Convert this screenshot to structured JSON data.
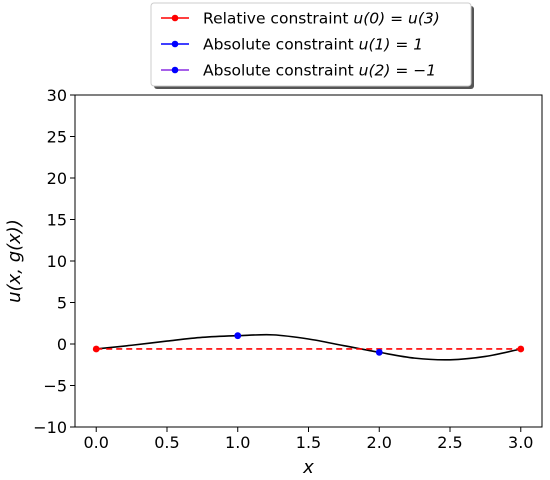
{
  "chart_data": {
    "type": "line",
    "title": "",
    "xlabel": "x",
    "ylabel": "u(x, g(x))",
    "xlim": [
      -0.15,
      3.15
    ],
    "ylim": [
      -10,
      30
    ],
    "xticks": [
      0.0,
      0.5,
      1.0,
      1.5,
      2.0,
      2.5,
      3.0
    ],
    "xtick_labels": [
      "0.0",
      "0.5",
      "1.0",
      "1.5",
      "2.0",
      "2.5",
      "3.0"
    ],
    "yticks": [
      -10,
      -5,
      0,
      5,
      10,
      15,
      20,
      25,
      30
    ],
    "ytick_labels": [
      "−10",
      "−5",
      "0",
      "5",
      "10",
      "15",
      "20",
      "25",
      "30"
    ],
    "grid": false,
    "legend_placement": "top-center, above plot",
    "curve": {
      "color": "#000000",
      "x": [
        0.0,
        0.25,
        0.5,
        0.75,
        1.0,
        1.25,
        1.5,
        1.75,
        2.0,
        2.25,
        2.5,
        2.75,
        3.0
      ],
      "y": [
        -0.6,
        -0.15,
        0.35,
        0.8,
        1.0,
        1.1,
        0.6,
        -0.2,
        -1.0,
        -1.7,
        -1.9,
        -1.5,
        -0.6
      ]
    },
    "series": [
      {
        "name": "Relative constraint u(0) = u(3)",
        "color": "#ff0000",
        "style": "dashed",
        "x": [
          0.0,
          3.0
        ],
        "y": [
          -0.6,
          -0.6
        ]
      },
      {
        "name": "Absolute constraint u(1) = 1",
        "color": "#0000ff",
        "style": "point",
        "x": [
          1.0
        ],
        "y": [
          1.0
        ]
      },
      {
        "name": "Absolute constraint u(2) = −1",
        "color": "#0000ff",
        "style": "point",
        "x": [
          2.0
        ],
        "y": [
          -1.0
        ]
      }
    ],
    "legend": [
      {
        "prefix": "Relative constraint ",
        "expr": "u(0) = u(3)",
        "color": "#ff0000",
        "line_color": "#ff0000"
      },
      {
        "prefix": "Absolute constraint ",
        "expr": "u(1) = 1",
        "color": "#0000ff",
        "line_color": "#0000ff"
      },
      {
        "prefix": "Absolute constraint ",
        "expr": "u(2) = −1",
        "color": "#0000ff",
        "line_color": "#8a2be2"
      }
    ]
  }
}
